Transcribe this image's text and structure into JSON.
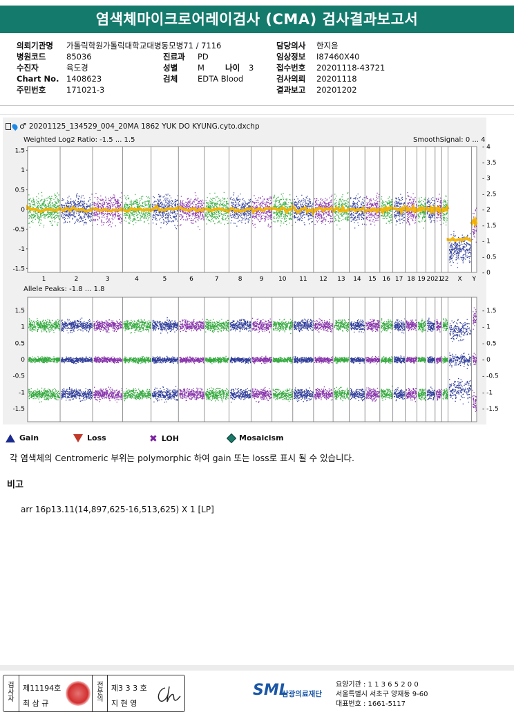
{
  "title": "염색체마이크로어레이검사 (CMA) 검사결과보고서",
  "info": {
    "col1": [
      {
        "label": "의뢰기관명",
        "value": "가톨릭학원가톨릭대학교대병동모병71 / 7116"
      },
      {
        "label": "병원코드",
        "value": "85036"
      },
      {
        "label": "수진자",
        "value": "육도경"
      },
      {
        "label": "Chart No.",
        "value": "1408623"
      },
      {
        "label": "주민번호",
        "value": "171021-3"
      }
    ],
    "col2": [
      {
        "label": "진료과",
        "value": "PD"
      },
      {
        "label": "성별",
        "value": "M"
      },
      {
        "label": "검체",
        "value": "EDTA Blood"
      }
    ],
    "age": {
      "label": "나이",
      "value": "3"
    },
    "col3": [
      {
        "label": "담당의사",
        "value": "한지윤"
      },
      {
        "label": "임상정보",
        "value": "I87460X40"
      },
      {
        "label": "접수번호",
        "value": "20201118-43721"
      },
      {
        "label": "검사의뢰",
        "value": "20201118"
      },
      {
        "label": "결과보고",
        "value": "20201202"
      }
    ]
  },
  "file_name": "20201125_134529_004_20MA 1862 YUK DO KYUNG.cyto.dxchp",
  "plot1": {
    "title": "Weighted Log2 Ratio: -1.5 ... 1.5",
    "right_title": "SmoothSignal: 0 ... 4",
    "left_ticks": [
      "1.5",
      "1",
      "0.5",
      "0",
      "-0.5",
      "-1",
      "-1.5"
    ],
    "right_ticks": [
      "4",
      "3.5",
      "3",
      "2.5",
      "2",
      "1.5",
      "1",
      "0.5",
      "0"
    ]
  },
  "plot2": {
    "title": "Allele Peaks: -1.8 ... 1.8",
    "left_ticks": [
      "1.5",
      "1",
      "0.5",
      "0",
      "-0.5",
      "-1",
      "-1.5"
    ],
    "right_ticks": [
      "1.5",
      "1",
      "0.5",
      "0",
      "-0.5",
      "-1",
      "-1.5"
    ]
  },
  "chromosomes": [
    "1",
    "2",
    "3",
    "4",
    "5",
    "6",
    "7",
    "8",
    "9",
    "10",
    "11",
    "12",
    "13",
    "14",
    "15",
    "16",
    "17",
    "18",
    "19",
    "20",
    "21",
    "22",
    "X",
    "Y"
  ],
  "chrom_widths": [
    50,
    50,
    46,
    44,
    42,
    40,
    38,
    34,
    32,
    32,
    32,
    30,
    25,
    24,
    23,
    20,
    19,
    18,
    14,
    14,
    10,
    10,
    36,
    8
  ],
  "chrom_colors": [
    "#1fa12a",
    "#1b2a8f",
    "#7b1fa2"
  ],
  "legend": [
    {
      "label": "Gain",
      "icon": "gain-triangle-icon",
      "color": "#1b2a8f"
    },
    {
      "label": "Loss",
      "icon": "loss-triangle-icon",
      "color": "#c0392b"
    },
    {
      "label": "LOH",
      "icon": "loh-cross-icon",
      "color": "#7b1fa2"
    },
    {
      "label": "Mosaicism",
      "icon": "mosaicism-diamond-icon",
      "color": "#1a7a6a"
    }
  ],
  "note": "각 염색체의 Centromeric 부위는 polymorphic 하여 gain 또는 loss로 표시 될 수 있습니다.",
  "remarks_title": "비고",
  "remarks_value": "arr 16p13.11(14,897,625-16,513,625) X 1 [LP]",
  "signatures": {
    "examiner_label": "검사자",
    "examiner_no": "제11194호",
    "examiner_name": "최 삼 규",
    "specialist_label": "전문의",
    "specialist_no": "제3 3 3 호",
    "specialist_name": "지 현 영"
  },
  "org": {
    "logo": "SML",
    "name": "삼광의료재단",
    "line1": "요양기관 : 1 1 3 6 5 2 0 0",
    "line2": "서울특별시 서초구 양재동 9-60",
    "line3": "대표번호 : 1661-5117"
  }
}
